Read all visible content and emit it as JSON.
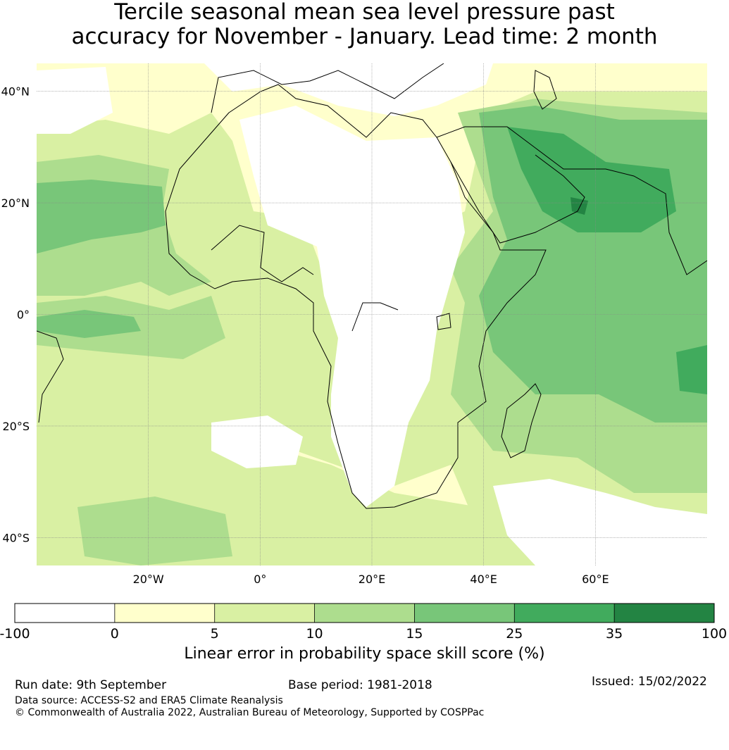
{
  "title": "Tercile seasonal mean sea level pressure past\naccuracy for November - January. Lead time: 2 month",
  "map": {
    "lon_range": [
      -40,
      80
    ],
    "lat_range": [
      -45,
      45
    ],
    "lon_ticks": [
      {
        "lon": -20,
        "label": "20°W"
      },
      {
        "lon": 0,
        "label": "0°"
      },
      {
        "lon": 20,
        "label": "20°E"
      },
      {
        "lon": 40,
        "label": "40°E"
      },
      {
        "lon": 60,
        "label": "60°E"
      }
    ],
    "lat_ticks": [
      {
        "lat": 40,
        "label": "40°N"
      },
      {
        "lat": 20,
        "label": "20°N"
      },
      {
        "lat": 0,
        "label": "0°"
      },
      {
        "lat": -20,
        "label": "20°S"
      },
      {
        "lat": -40,
        "label": "40°S"
      }
    ],
    "gridlines": true
  },
  "colorbar": {
    "title": "Linear error in probability space skill score (%)",
    "boundaries": [
      "-100",
      "0",
      "5",
      "10",
      "15",
      "25",
      "35",
      "100"
    ],
    "colors": [
      "#ffffff",
      "#ffffcc",
      "#d9f0a3",
      "#addd8e",
      "#78c679",
      "#41ab5d",
      "#238443"
    ]
  },
  "footer": {
    "run_date": "Run date: 9th September",
    "base_period": "Base period: 1981-2018",
    "issued": "Issued: 15/02/2022",
    "data_source": "Data source: ACCESS-S2 and ERA5 Climate Reanalysis",
    "copyright": "© Commonwealth of Australia 2022, Australian Bureau of Meteorology, Supported by COSPPac"
  }
}
